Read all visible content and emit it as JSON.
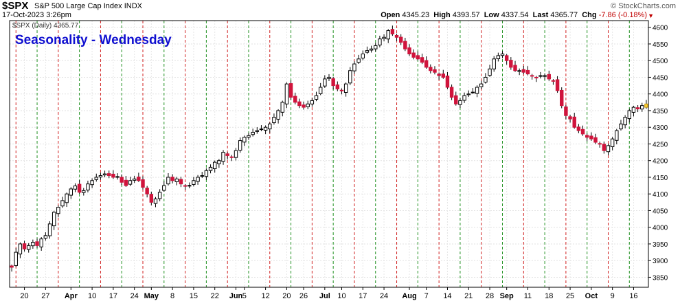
{
  "header": {
    "symbol": "$SPX",
    "name": "S&P 500 Large Cap Index",
    "exchange": "INDX",
    "datetime": "17-Oct-2023 3:26pm",
    "brand": "© StockCharts.com",
    "ohlc": {
      "open_label": "Open",
      "open": "4345.23",
      "high_label": "High",
      "high": "4393.57",
      "low_label": "Low",
      "low": "4337.54",
      "last_label": "Last",
      "last": "4365.77",
      "chg_label": "Chg",
      "chg": "-7.86 (-0.18%)",
      "chg_arrow": "▼"
    }
  },
  "chart_data": {
    "type": "candlestick",
    "title": "Seasonality - Wednesday",
    "legend": "$SPX (Daily) 4365.77",
    "ylim": [
      3820,
      4620
    ],
    "yticks": [
      3850,
      3900,
      3950,
      4000,
      4050,
      4100,
      4150,
      4200,
      4250,
      4300,
      4350,
      4400,
      4450,
      4500,
      4550,
      4600
    ],
    "xticks": [
      {
        "label": "20",
        "idx": 3
      },
      {
        "label": "27",
        "idx": 8
      },
      {
        "label": "Apr",
        "idx": 14,
        "bold": true
      },
      {
        "label": "10",
        "idx": 19
      },
      {
        "label": "17",
        "idx": 24
      },
      {
        "label": "24",
        "idx": 29
      },
      {
        "label": "May",
        "idx": 33,
        "bold": true
      },
      {
        "label": "8",
        "idx": 38
      },
      {
        "label": "15",
        "idx": 43
      },
      {
        "label": "22",
        "idx": 48
      },
      {
        "label": "Jun",
        "idx": 53,
        "bold": true
      },
      {
        "label": "5",
        "idx": 55
      },
      {
        "label": "12",
        "idx": 60
      },
      {
        "label": "20",
        "idx": 65
      },
      {
        "label": "26",
        "idx": 69
      },
      {
        "label": "Jul",
        "idx": 74,
        "bold": true
      },
      {
        "label": "10",
        "idx": 78
      },
      {
        "label": "17",
        "idx": 83
      },
      {
        "label": "24",
        "idx": 88
      },
      {
        "label": "Aug",
        "idx": 94,
        "bold": true
      },
      {
        "label": "7",
        "idx": 98
      },
      {
        "label": "14",
        "idx": 103
      },
      {
        "label": "21",
        "idx": 108
      },
      {
        "label": "28",
        "idx": 113
      },
      {
        "label": "Sep",
        "idx": 117,
        "bold": true
      },
      {
        "label": "11",
        "idx": 122
      },
      {
        "label": "18",
        "idx": 127
      },
      {
        "label": "25",
        "idx": 132
      },
      {
        "label": "Oct",
        "idx": 137,
        "bold": true
      },
      {
        "label": "9",
        "idx": 142
      },
      {
        "label": "16",
        "idx": 147
      }
    ],
    "wednesday_lines": {
      "start_idx": 1,
      "step": 5
    },
    "close_series": [
      3880,
      3925,
      3950,
      3935,
      3945,
      3955,
      3945,
      3965,
      3975,
      4010,
      4045,
      4060,
      4080,
      4100,
      4115,
      4124,
      4105,
      4110,
      4130,
      4140,
      4150,
      4155,
      4160,
      4155,
      4150,
      4150,
      4135,
      4125,
      4140,
      4145,
      4140,
      4120,
      4100,
      4075,
      4085,
      4105,
      4125,
      4150,
      4140,
      4145,
      4130,
      4125,
      4125,
      4140,
      4150,
      4155,
      4170,
      4180,
      4195,
      4200,
      4225,
      4215,
      4210,
      4230,
      4260,
      4270,
      4275,
      4285,
      4290,
      4295,
      4300,
      4310,
      4330,
      4350,
      4375,
      4430,
      4390,
      4375,
      4365,
      4360,
      4370,
      4380,
      4395,
      4420,
      4445,
      4450,
      4425,
      4415,
      4410,
      4430,
      4470,
      4490,
      4505,
      4520,
      4530,
      4535,
      4545,
      4565,
      4570,
      4590,
      4580,
      4570,
      4555,
      4535,
      4520,
      4510,
      4505,
      4495,
      4480,
      4470,
      4465,
      4455,
      4450,
      4420,
      4390,
      4370,
      4380,
      4395,
      4400,
      4405,
      4420,
      4430,
      4450,
      4475,
      4505,
      4515,
      4520,
      4500,
      4480,
      4470,
      4470,
      4465,
      4460,
      4455,
      4450,
      4455,
      4455,
      4445,
      4440,
      4410,
      4365,
      4335,
      4325,
      4300,
      4290,
      4280,
      4270,
      4265,
      4255,
      4250,
      4230,
      4245,
      4265,
      4290,
      4310,
      4330,
      4350,
      4360,
      4355,
      4365,
      4360
    ]
  }
}
